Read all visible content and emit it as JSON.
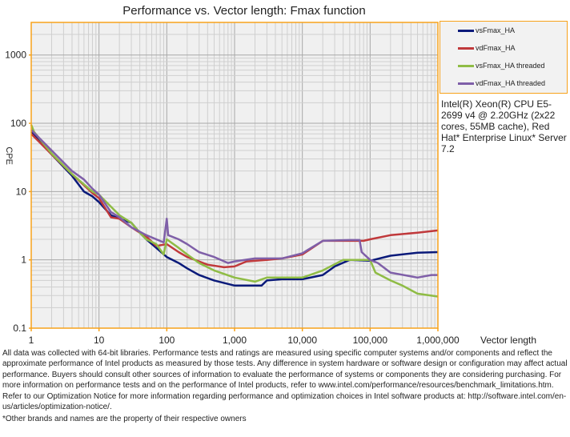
{
  "chart_data": {
    "type": "line",
    "title": "Performance vs. Vector length: Fmax function",
    "xlabel": "Vector length",
    "ylabel": "CPE",
    "xscale": "log",
    "yscale": "log",
    "xlim": [
      1,
      1000000
    ],
    "ylim": [
      0.1,
      3000
    ],
    "grid": true,
    "legend_placement": "right",
    "xticks": [
      "1",
      "10",
      "100",
      "1,000",
      "10,000",
      "100,000",
      "1,000,000"
    ],
    "yticks": [
      "0.1",
      "1",
      "10",
      "100",
      "1000"
    ],
    "colors": {
      "border": "#f7a21b",
      "plot_bg": "#f0f0f0"
    },
    "series": [
      {
        "name": "vsFmax_HA",
        "color": "#0a1a7a",
        "x": [
          1,
          2,
          4,
          6,
          8,
          10,
          15,
          20,
          30,
          40,
          50,
          70,
          100,
          150,
          200,
          300,
          500,
          1000,
          2000,
          2500,
          3000,
          5000,
          10000,
          20000,
          30000,
          50000,
          100000,
          200000,
          500000,
          1000000
        ],
        "y": [
          75,
          35,
          17,
          10,
          8.5,
          7,
          4.5,
          4,
          3.5,
          2.5,
          2,
          1.5,
          1.1,
          0.9,
          0.75,
          0.6,
          0.5,
          0.42,
          0.42,
          0.42,
          0.5,
          0.52,
          0.52,
          0.6,
          0.8,
          1.0,
          0.97,
          1.15,
          1.27,
          1.3
        ]
      },
      {
        "name": "vdFmax_HA",
        "color": "#c0393b",
        "x": [
          1,
          2,
          4,
          8,
          10,
          15,
          20,
          30,
          40,
          50,
          70,
          100,
          150,
          200,
          400,
          700,
          1000,
          1500,
          3000,
          5000,
          10000,
          20000,
          50000,
          80000,
          100000,
          200000,
          500000,
          1000000
        ],
        "y": [
          70,
          35,
          18,
          9.5,
          8,
          4.2,
          4,
          3,
          2.5,
          2.2,
          1.6,
          1.7,
          1.3,
          1.1,
          0.85,
          0.78,
          0.8,
          0.95,
          1.0,
          1.05,
          1.2,
          1.9,
          1.9,
          1.9,
          2.0,
          2.3,
          2.5,
          2.7
        ]
      },
      {
        "name": "vsFmax_HA threaded",
        "color": "#8fbc45",
        "x": [
          1,
          1.1,
          2,
          4,
          8,
          10,
          15,
          20,
          30,
          40,
          50,
          70,
          90,
          100,
          150,
          200,
          300,
          500,
          1000,
          2000,
          3000,
          5000,
          10000,
          20000,
          40000,
          100000,
          120000,
          200000,
          300000,
          500000,
          1000000
        ],
        "y": [
          95,
          75,
          36,
          18,
          10,
          9,
          6,
          4.5,
          3.5,
          2.5,
          2,
          1.7,
          1.2,
          2.0,
          1.5,
          1.2,
          0.9,
          0.7,
          0.55,
          0.48,
          0.55,
          0.55,
          0.55,
          0.7,
          1.0,
          1.0,
          0.65,
          0.5,
          0.42,
          0.32,
          0.29
        ]
      },
      {
        "name": "vdFmax_HA threaded",
        "color": "#7f5fa8",
        "x": [
          1,
          2,
          4,
          6,
          8,
          10,
          15,
          20,
          30,
          50,
          90,
          100,
          105,
          150,
          200,
          300,
          500,
          800,
          1000,
          2000,
          5000,
          10000,
          20000,
          50000,
          70000,
          75000,
          100000,
          130000,
          200000,
          500000,
          800000,
          1000000
        ],
        "y": [
          80,
          40,
          20,
          15,
          11,
          9,
          5,
          4.2,
          3,
          2.3,
          1.8,
          4.0,
          2.3,
          2.0,
          1.7,
          1.3,
          1.1,
          0.9,
          0.95,
          1.05,
          1.05,
          1.25,
          1.9,
          1.95,
          1.95,
          1.3,
          1.0,
          0.9,
          0.65,
          0.55,
          0.6,
          0.6
        ]
      }
    ],
    "annotation": "Intel(R) Xeon(R) CPU E5-2699 v4 @ 2.20GHz (2x22 cores, 55MB cache), Red Hat* Enterprise Linux* Server 7.2"
  },
  "footer": {
    "disclaimer": "All data was collected with 64-bit libraries. Performance tests and ratings are measured using specific computer systems and/or components and reflect the approximate performance of Intel products as measured by those tests. Any difference in system hardware or software design or configuration may affect actual performance. Buyers should consult other sources of information to evaluate the performance of systems or components they are considering purchasing. For more information on performance tests and on the performance of Intel products, refer to www.intel.com/performance/resources/benchmark_limitations.htm. Refer to our Optimization Notice for more information regarding performance and optimization choices in Intel software products at: http://software.intel.com/en-us/articles/optimization-notice/.",
    "trademark": "*Other brands and names are the property of their respective owners"
  }
}
